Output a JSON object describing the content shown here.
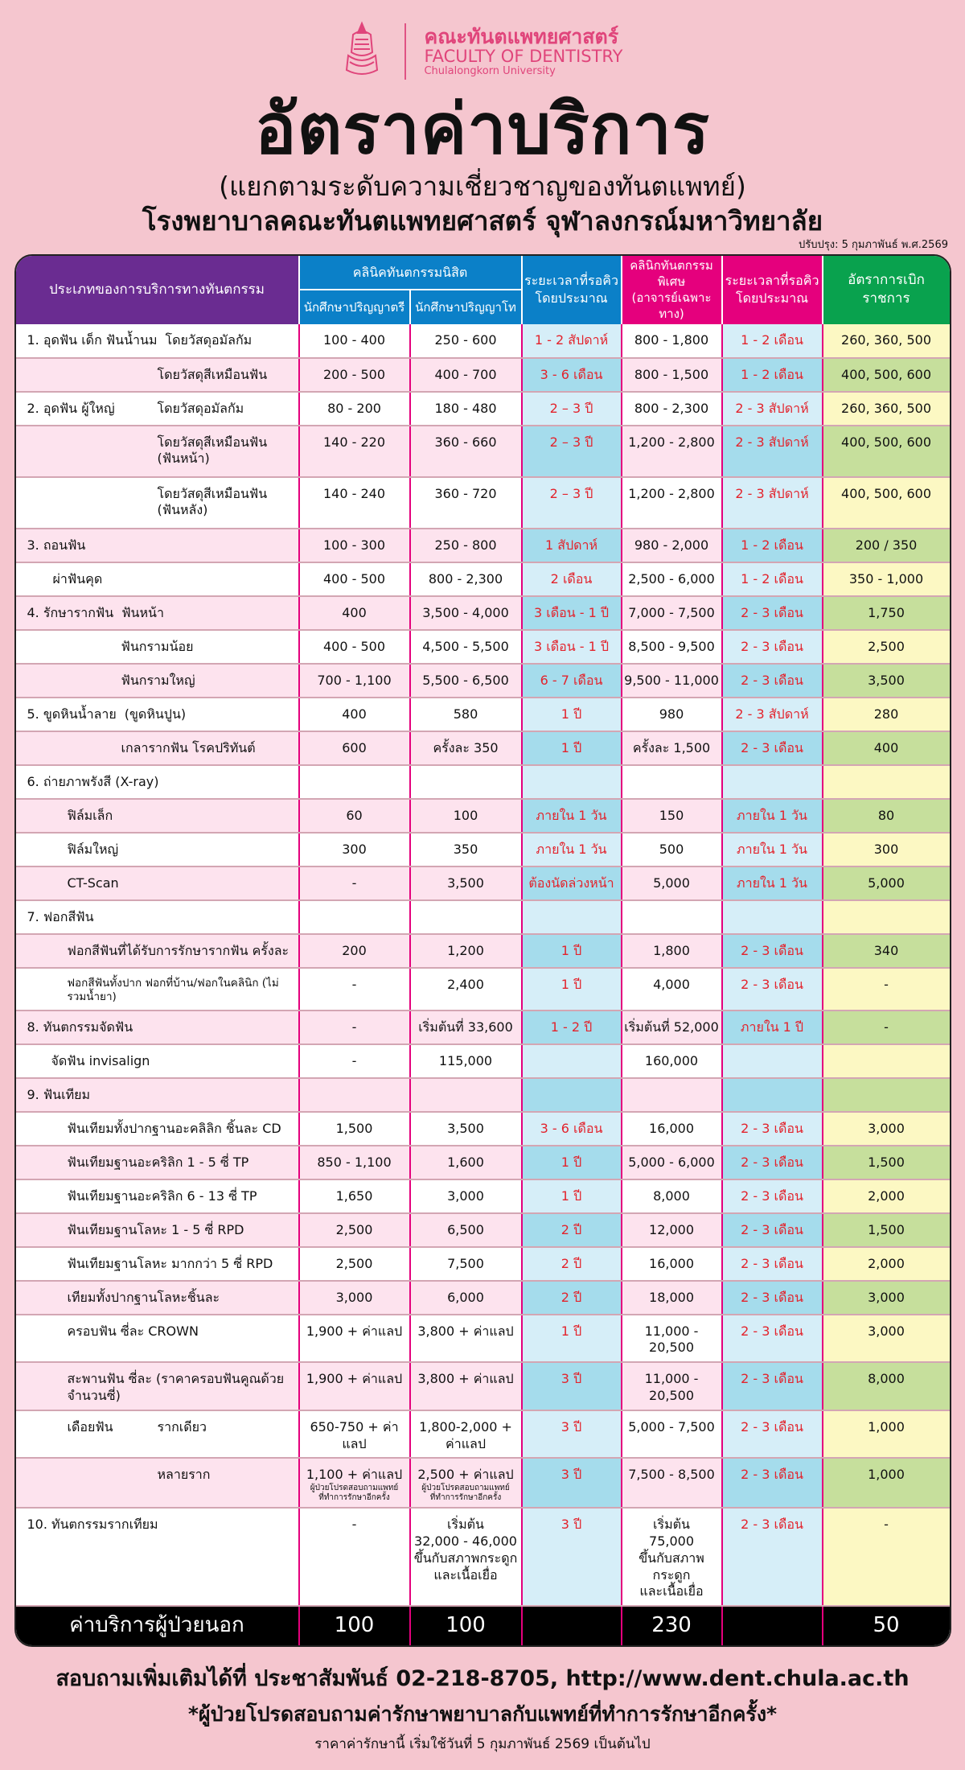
{
  "header": {
    "logo_th": "คณะทันตแพทยศาสตร์",
    "logo_en": "FACULTY OF DENTISTRY",
    "logo_uni": "Chulalongkorn University",
    "title": "อัตราค่าบริการ",
    "subtitle1": "(แยกตามระดับความเชี่ยวชาญของทันตแพทย์)",
    "subtitle2": "โรงพยาบาลคณะทันตแพทยศาสตร์ จุฬาลงกรณ์มหาวิทยาลัย",
    "updated": "ปรับปรุง: 5 กุมภาพันธ์ พ.ศ.2569"
  },
  "colors": {
    "purple": "#6a2c91",
    "blue": "#0b80c8",
    "magenta": "#e5007d",
    "green": "#09a24e",
    "wait_text": "#e3232c",
    "page_bg": "#f5c6cf"
  },
  "table": {
    "headers": {
      "service_type": "ประเภทของการบริการทางทันตกรรม",
      "student_clinic": "คลินิคทันตกรรมนิสิต",
      "undergrad": "นักศึกษาปริญญาตรี",
      "grad": "นักศึกษาปริญญาโท",
      "wait1": [
        "ระยะเวลาที่รอคิว",
        "โดยประมาณ"
      ],
      "special_clinic": [
        "คลินิกทันตกรรมพิเศษ",
        "(อาจารย์เฉพาะทาง)"
      ],
      "wait2": [
        "ระยะเวลาที่รอคิว",
        "โดยประมาณ"
      ],
      "gov_rate": "อัตราการเบิกราชการ"
    },
    "rows": [
      {
        "main": "1. อุดฟัน เด็ก ฟันน้ำนม",
        "sub": "โดยวัสดุอมัลกัม",
        "c": [
          "100 - 400",
          "250  - 600",
          "1 - 2 สัปดาห์",
          "800 - 1,800",
          "1 - 2 เดือน",
          "260, 360, 500"
        ]
      },
      {
        "sub": "โดยวัสดุสีเหมือนฟัน",
        "c": [
          "200 - 500",
          "400 - 700",
          "3 - 6 เดือน",
          "800 - 1,500",
          "1 - 2 เดือน",
          "400, 500, 600"
        ]
      },
      {
        "main": "2. อุดฟัน ผู้ใหญ่",
        "sub": "โดยวัสดุอมัลกัม",
        "c": [
          "80 - 200",
          "180 - 480",
          "2 – 3 ปี",
          "800 - 2,300",
          "2 - 3 สัปดาห์",
          "260, 360, 500"
        ]
      },
      {
        "sub": "โดยวัสดุสีเหมือนฟัน",
        "sub2": "(ฟันหน้า)",
        "c": [
          "140 - 220",
          "360 - 660",
          "2 – 3 ปี",
          "1,200 - 2,800",
          "2 - 3 สัปดาห์",
          "400, 500, 600"
        ]
      },
      {
        "sub": "โดยวัสดุสีเหมือนฟัน",
        "sub2": "(ฟันหลัง)",
        "c": [
          "140 - 240",
          "360 - 720",
          "2 – 3 ปี",
          "1,200 - 2,800",
          "2 - 3 สัปดาห์",
          "400, 500, 600"
        ]
      },
      {
        "main": "3. ถอนฟัน",
        "c": [
          "100 - 300",
          "250 - 800",
          "1 สัปดาห์",
          "980 - 2,000",
          "1 - 2 เดือน",
          "200 / 350"
        ]
      },
      {
        "main": "ผ่าฟันคุด",
        "indent": 32,
        "c": [
          "400 - 500",
          "800 - 2,300",
          "2 เดือน",
          "2,500 - 6,000",
          "1 - 2 เดือน",
          "350 - 1,000"
        ]
      },
      {
        "main": "4. รักษารากฟัน",
        "sub": "ฟันหน้า",
        "submid": true,
        "c": [
          "400",
          "3,500 - 4,000",
          "3 เดือน - 1 ปี",
          "7,000 - 7,500",
          "2 - 3 เดือน",
          "1,750"
        ]
      },
      {
        "sub": "ฟันกรามน้อย",
        "submid": true,
        "c": [
          "400 - 500",
          "4,500 - 5,500",
          "3 เดือน - 1 ปี",
          "8,500 - 9,500",
          "2 - 3 เดือน",
          "2,500"
        ]
      },
      {
        "sub": "ฟันกรามใหญ่",
        "submid": true,
        "c": [
          "700 - 1,100",
          "5,500 - 6,500",
          "6 - 7 เดือน",
          "9,500 - 11,000",
          "2 - 3 เดือน",
          "3,500"
        ]
      },
      {
        "main": "5. ขูดหินน้ำลาย",
        "sub": "(ขูดหินปูน)",
        "submid": true,
        "c": [
          "400",
          "580",
          "1 ปี",
          "980",
          "2 - 3 สัปดาห์",
          "280"
        ]
      },
      {
        "sub": "เกลารากฟัน โรคปริทันต์",
        "submid": true,
        "c": [
          "600",
          "ครั้งละ 350",
          "1 ปี",
          "ครั้งละ 1,500",
          "2 - 3 เดือน",
          "400"
        ]
      },
      {
        "main": "6. ถ่ายภาพรังสี (X-ray)",
        "c": [
          "",
          "",
          "",
          "",
          "",
          ""
        ]
      },
      {
        "main": "ฟิล์มเล็ก",
        "indent": 50,
        "c": [
          "60",
          "100",
          "ภายใน 1 วัน",
          "150",
          "ภายใน 1 วัน",
          "80"
        ]
      },
      {
        "main": "ฟิล์มใหญ่",
        "indent": 50,
        "c": [
          "300",
          "350",
          "ภายใน 1 วัน",
          "500",
          "ภายใน 1 วัน",
          "300"
        ]
      },
      {
        "main": "CT-Scan",
        "indent": 50,
        "c": [
          "-",
          "3,500",
          "ต้องนัดล่วงหน้า",
          "5,000",
          "ภายใน 1 วัน",
          "5,000"
        ]
      },
      {
        "main": "7. ฟอกสีฟัน",
        "c": [
          "",
          "",
          "",
          "",
          "",
          ""
        ]
      },
      {
        "main": "ฟอกสีฟันที่ได้รับการรักษารากฟัน ครั้งละ",
        "indent": 50,
        "c": [
          "200",
          "1,200",
          "1 ปี",
          "1,800",
          "2 - 3 เดือน",
          "340"
        ]
      },
      {
        "main": "ฟอกสีฟันทั้งปาก ฟอกที่บ้าน/ฟอกในคลินิก (ไม่รวมน้ำยา)",
        "indent": 50,
        "small": true,
        "c": [
          "-",
          "2,400",
          "1 ปี",
          "4,000",
          "2 - 3 เดือน",
          "-"
        ]
      },
      {
        "main": "8. ทันตกรรมจัดฟัน",
        "c": [
          "-",
          "เริ่มต้นที่ 33,600",
          "1 - 2 ปี",
          "เริ่มต้นที่ 52,000",
          "ภายใน 1 ปี",
          "-"
        ]
      },
      {
        "main": "จัดฟัน invisalign",
        "indent": 30,
        "c": [
          "-",
          "115,000",
          "",
          "160,000",
          "",
          ""
        ]
      },
      {
        "main": "9. ฟันเทียม",
        "c": [
          "",
          "",
          "",
          "",
          "",
          ""
        ]
      },
      {
        "main": "ฟันเทียมทั้งปากฐานอะคลิลิก ชิ้นละ CD",
        "indent": 50,
        "c": [
          "1,500",
          "3,500",
          "3 - 6 เดือน",
          "16,000",
          "2 - 3 เดือน",
          "3,000"
        ]
      },
      {
        "main": "ฟันเทียมฐานอะคริลิก 1 - 5 ซี่ TP",
        "indent": 50,
        "c": [
          "850 - 1,100",
          "1,600",
          "1 ปี",
          "5,000 - 6,000",
          "2 - 3 เดือน",
          "1,500"
        ]
      },
      {
        "main": "ฟันเทียมฐานอะคริลิก 6 - 13 ซี่ TP",
        "indent": 50,
        "c": [
          "1,650",
          "3,000",
          "1 ปี",
          "8,000",
          "2 - 3 เดือน",
          "2,000"
        ]
      },
      {
        "main": "ฟันเทียมฐานโลหะ 1 - 5 ซี่ RPD",
        "indent": 50,
        "c": [
          "2,500",
          "6,500",
          "2 ปี",
          "12,000",
          "2 - 3 เดือน",
          "1,500"
        ]
      },
      {
        "main": "ฟันเทียมฐานโลหะ มากกว่า 5 ซี่ RPD",
        "indent": 50,
        "c": [
          "2,500",
          "7,500",
          "2 ปี",
          "16,000",
          "2 - 3 เดือน",
          "2,000"
        ]
      },
      {
        "main": "เทียมทั้งปากฐานโลหะชิ้นละ",
        "indent": 50,
        "c": [
          "3,000",
          "6,000",
          "2 ปี",
          "18,000",
          "2 - 3 เดือน",
          "3,000"
        ]
      },
      {
        "main": "ครอบฟัน ซี่ละ CROWN",
        "indent": 50,
        "c": [
          "1,900 + ค่าแลป",
          "3,800 + ค่าแลป",
          "1 ปี",
          "11,000 - 20,500",
          "2 - 3 เดือน",
          "3,000"
        ]
      },
      {
        "main": "สะพานฟัน ซี่ละ (ราคาครอบฟันคูณด้วยจำนวนซี่)",
        "indent": 50,
        "c": [
          "1,900 + ค่าแลป",
          "3,800 + ค่าแลป",
          "3 ปี",
          "11,000 - 20,500",
          "2 - 3 เดือน",
          "8,000"
        ]
      },
      {
        "main": "เดือยฟัน",
        "indent": 50,
        "sub": "รากเดียว",
        "c": [
          "650-750 + ค่าแลป",
          "1,800-2,000 + ค่าแลป",
          "3 ปี",
          "5,000 - 7,500",
          "2 - 3 เดือน",
          "1,000"
        ]
      },
      {
        "sub": "หลายราก",
        "c": [
          [
            "1,100 + ค่าแลป",
            "ผู้ป่วยโปรดสอบถามแพทย์",
            "ที่ทำการรักษาอีกครั้ง"
          ],
          [
            "2,500 + ค่าแลป",
            "ผู้ป่วยโปรดสอบถามแพทย์",
            "ที่ทำการรักษาอีกครั้ง"
          ],
          "3 ปี",
          "7,500 - 8,500",
          "2 - 3 เดือน",
          "1,000"
        ]
      },
      {
        "main": "10. ทันตกรรมรากเทียม",
        "c": [
          "-",
          [
            "เริ่มต้น",
            "32,000 - 46,000",
            "ขึ้นกับสภาพกระดูก",
            "และเนื้อเยื่อ"
          ],
          "3 ปี",
          [
            "เริ่มต้น",
            "75,000",
            "ขึ้นกับสภาพกระดูก",
            "และเนื้อเยื่อ"
          ],
          "2 - 3 เดือน",
          "-"
        ]
      }
    ],
    "footer_row": {
      "label": "ค่าบริการผู้ป่วยนอก",
      "c": [
        "100",
        "100",
        "",
        "230",
        "",
        "50"
      ]
    }
  },
  "footer": {
    "contact": "สอบถามเพิ่มเติมได้ที่ ประชาสัมพันธ์ 02-218-8705, http://www.dent.chula.ac.th",
    "notice": "*ผู้ป่วยโปรดสอบถามค่ารักษาพยาบาลกับแพทย์ที่ทำการรักษาอีกครั้ง*",
    "effective": "ราคาค่ารักษานี้ เริ่มใช้วันที่ 5 กุมภาพันธ์ 2569 เป็นต้นไป"
  }
}
